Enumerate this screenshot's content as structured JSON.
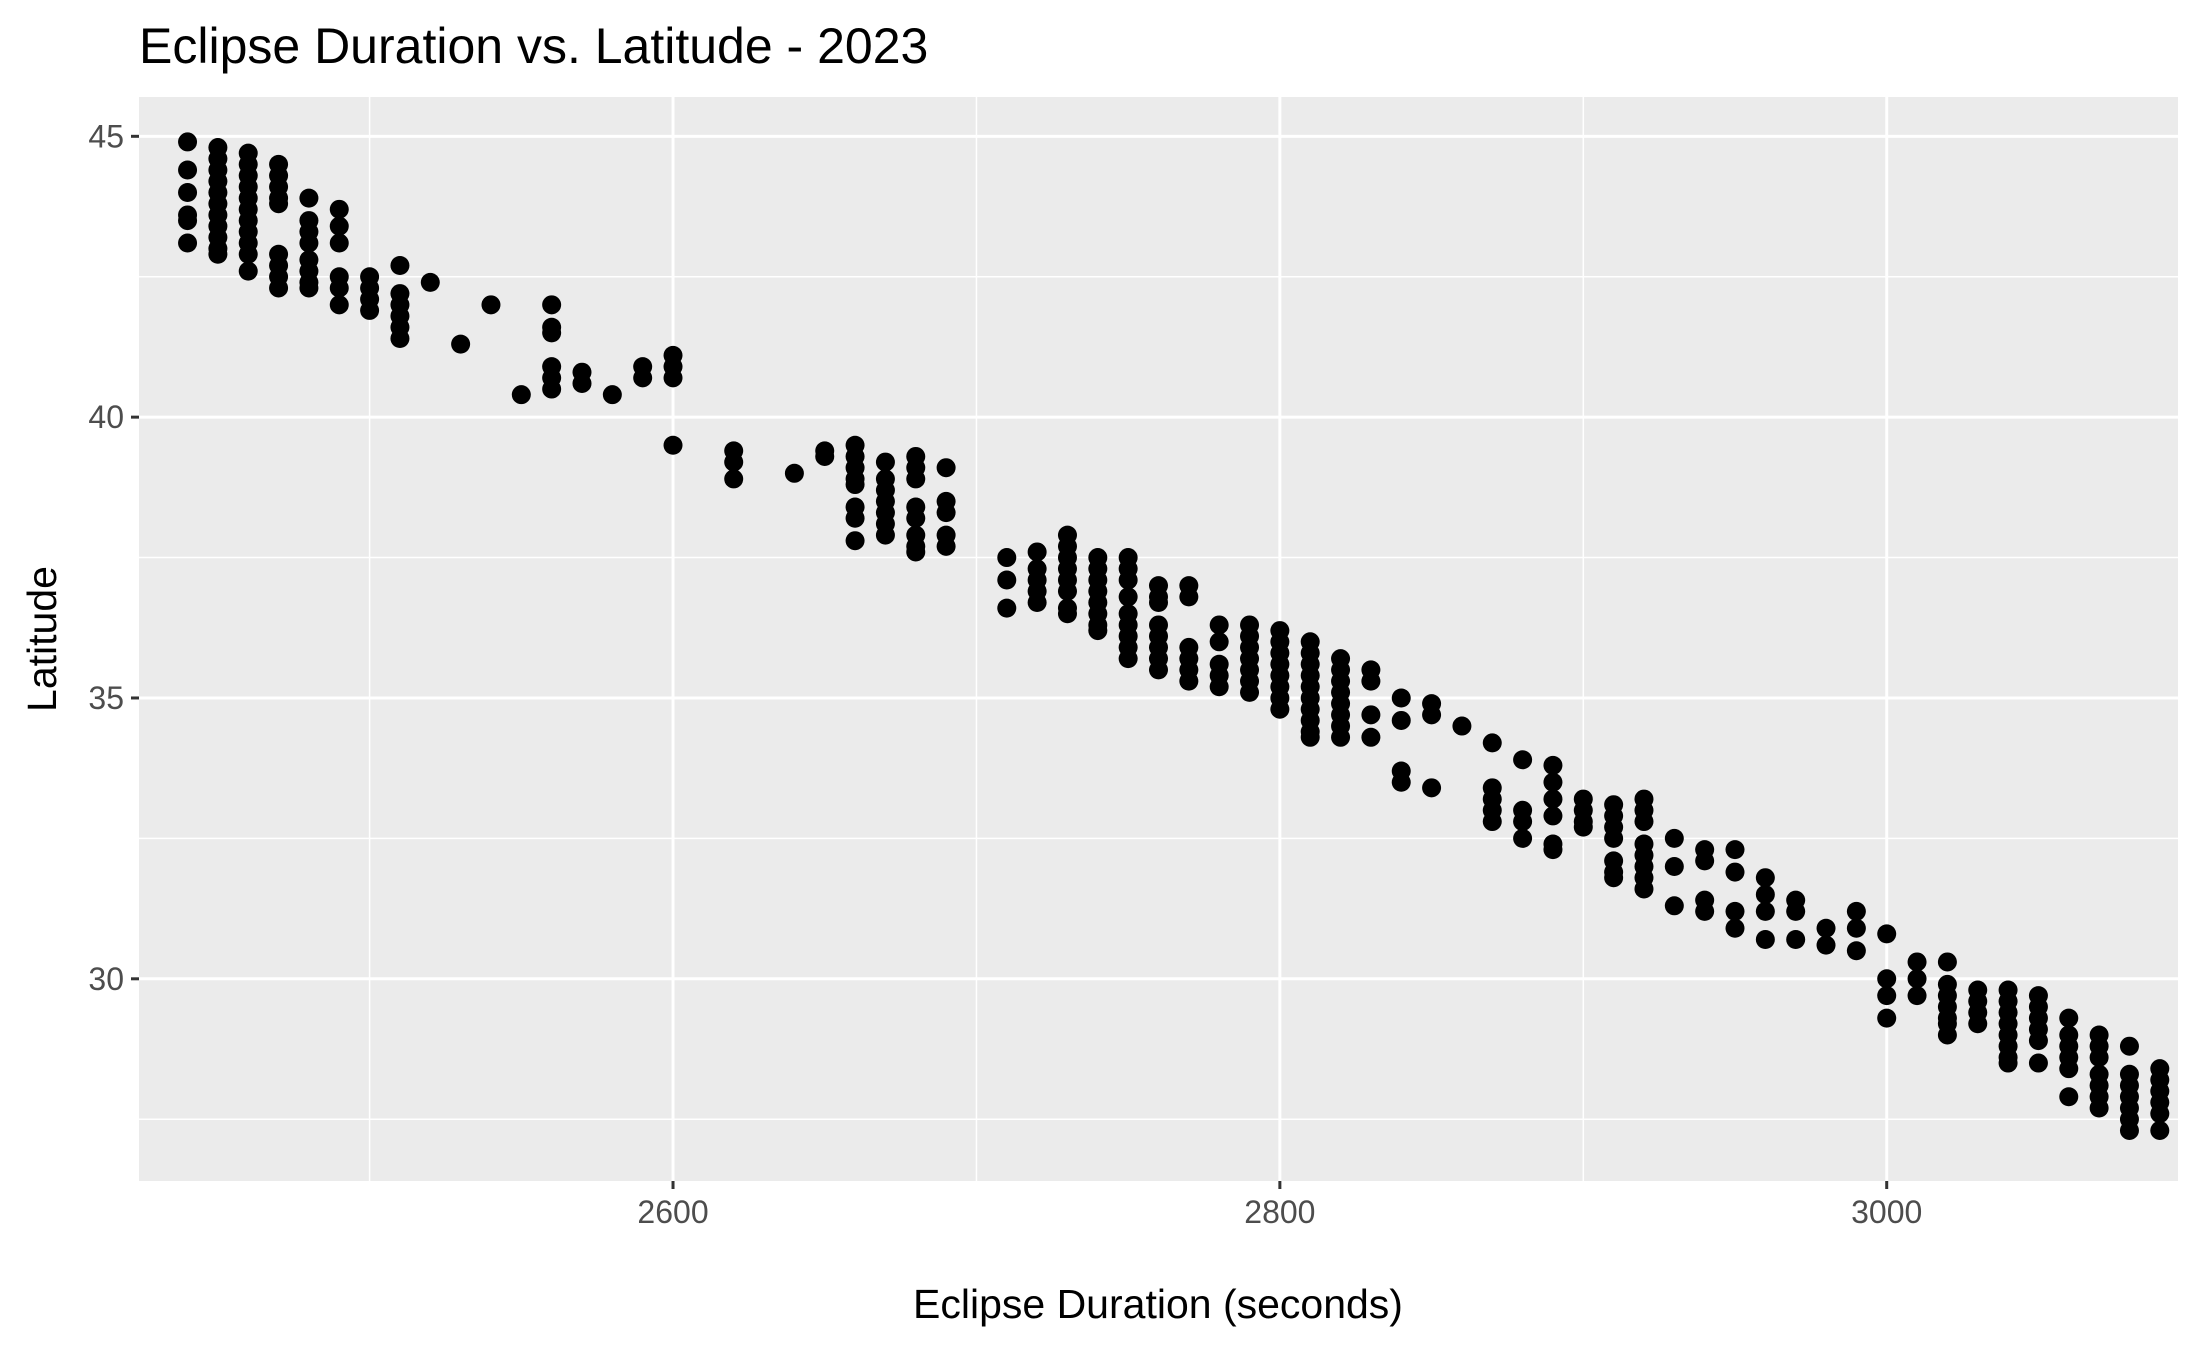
{
  "chart_data": {
    "type": "scatter",
    "title": "Eclipse Duration vs. Latitude - 2023",
    "xlabel": "Eclipse Duration (seconds)",
    "ylabel": "Latitude",
    "xlim": [
      2424,
      3096
    ],
    "ylim": [
      26.4,
      45.7
    ],
    "x_ticks": [
      2600,
      2800,
      3000
    ],
    "x_tick_labels": [
      "2600",
      "2800",
      "3000"
    ],
    "y_ticks": [
      30,
      35,
      40,
      45
    ],
    "y_tick_labels": [
      "30",
      "35",
      "40",
      "45"
    ],
    "grid": true,
    "legend": "none",
    "panel_color": "#ebebeb",
    "grid_color": "#ffffff",
    "point_color": "#000000",
    "points": [
      [
        2440,
        44.9
      ],
      [
        2440,
        44.4
      ],
      [
        2440,
        44.0
      ],
      [
        2440,
        43.6
      ],
      [
        2440,
        43.5
      ],
      [
        2440,
        43.1
      ],
      [
        2450,
        44.8
      ],
      [
        2450,
        44.6
      ],
      [
        2450,
        44.4
      ],
      [
        2450,
        44.2
      ],
      [
        2450,
        44.0
      ],
      [
        2450,
        43.8
      ],
      [
        2450,
        43.6
      ],
      [
        2450,
        43.4
      ],
      [
        2450,
        43.2
      ],
      [
        2450,
        43.0
      ],
      [
        2450,
        42.9
      ],
      [
        2460,
        44.7
      ],
      [
        2460,
        44.5
      ],
      [
        2460,
        44.3
      ],
      [
        2460,
        44.1
      ],
      [
        2460,
        43.9
      ],
      [
        2460,
        43.7
      ],
      [
        2460,
        43.5
      ],
      [
        2460,
        43.3
      ],
      [
        2460,
        43.1
      ],
      [
        2460,
        42.9
      ],
      [
        2460,
        42.6
      ],
      [
        2470,
        44.5
      ],
      [
        2470,
        44.3
      ],
      [
        2470,
        44.1
      ],
      [
        2470,
        43.9
      ],
      [
        2470,
        43.8
      ],
      [
        2470,
        42.9
      ],
      [
        2470,
        42.7
      ],
      [
        2470,
        42.5
      ],
      [
        2470,
        42.3
      ],
      [
        2480,
        43.9
      ],
      [
        2480,
        43.5
      ],
      [
        2480,
        43.3
      ],
      [
        2480,
        43.1
      ],
      [
        2480,
        42.8
      ],
      [
        2480,
        42.6
      ],
      [
        2480,
        42.4
      ],
      [
        2480,
        42.3
      ],
      [
        2490,
        43.7
      ],
      [
        2490,
        43.4
      ],
      [
        2490,
        43.1
      ],
      [
        2490,
        42.5
      ],
      [
        2490,
        42.3
      ],
      [
        2490,
        42.0
      ],
      [
        2500,
        42.5
      ],
      [
        2500,
        42.3
      ],
      [
        2500,
        42.1
      ],
      [
        2500,
        41.9
      ],
      [
        2510,
        42.7
      ],
      [
        2510,
        42.2
      ],
      [
        2510,
        42.0
      ],
      [
        2510,
        41.8
      ],
      [
        2510,
        41.6
      ],
      [
        2510,
        41.4
      ],
      [
        2520,
        42.4
      ],
      [
        2530,
        41.3
      ],
      [
        2540,
        42.0
      ],
      [
        2550,
        40.4
      ],
      [
        2560,
        42.0
      ],
      [
        2560,
        41.6
      ],
      [
        2560,
        41.5
      ],
      [
        2560,
        40.9
      ],
      [
        2560,
        40.7
      ],
      [
        2560,
        40.5
      ],
      [
        2570,
        40.8
      ],
      [
        2570,
        40.6
      ],
      [
        2580,
        40.4
      ],
      [
        2590,
        40.9
      ],
      [
        2590,
        40.7
      ],
      [
        2600,
        41.1
      ],
      [
        2600,
        40.9
      ],
      [
        2600,
        40.7
      ],
      [
        2600,
        39.5
      ],
      [
        2620,
        39.4
      ],
      [
        2620,
        39.2
      ],
      [
        2620,
        38.9
      ],
      [
        2640,
        39.0
      ],
      [
        2650,
        39.4
      ],
      [
        2650,
        39.3
      ],
      [
        2660,
        39.5
      ],
      [
        2660,
        39.3
      ],
      [
        2660,
        39.1
      ],
      [
        2660,
        38.9
      ],
      [
        2660,
        38.8
      ],
      [
        2660,
        38.4
      ],
      [
        2660,
        38.2
      ],
      [
        2660,
        37.8
      ],
      [
        2670,
        39.2
      ],
      [
        2670,
        38.9
      ],
      [
        2670,
        38.7
      ],
      [
        2670,
        38.5
      ],
      [
        2670,
        38.3
      ],
      [
        2670,
        38.1
      ],
      [
        2670,
        37.9
      ],
      [
        2680,
        39.3
      ],
      [
        2680,
        39.1
      ],
      [
        2680,
        38.9
      ],
      [
        2680,
        38.4
      ],
      [
        2680,
        38.2
      ],
      [
        2680,
        37.9
      ],
      [
        2680,
        37.7
      ],
      [
        2680,
        37.6
      ],
      [
        2690,
        39.1
      ],
      [
        2690,
        38.5
      ],
      [
        2690,
        38.3
      ],
      [
        2690,
        37.9
      ],
      [
        2690,
        37.7
      ],
      [
        2710,
        37.5
      ],
      [
        2710,
        37.1
      ],
      [
        2710,
        36.6
      ],
      [
        2720,
        37.6
      ],
      [
        2720,
        37.3
      ],
      [
        2720,
        37.1
      ],
      [
        2720,
        36.9
      ],
      [
        2720,
        36.7
      ],
      [
        2730,
        37.9
      ],
      [
        2730,
        37.7
      ],
      [
        2730,
        37.5
      ],
      [
        2730,
        37.3
      ],
      [
        2730,
        37.1
      ],
      [
        2730,
        36.9
      ],
      [
        2730,
        36.6
      ],
      [
        2730,
        36.5
      ],
      [
        2740,
        37.5
      ],
      [
        2740,
        37.3
      ],
      [
        2740,
        37.1
      ],
      [
        2740,
        36.9
      ],
      [
        2740,
        36.7
      ],
      [
        2740,
        36.5
      ],
      [
        2740,
        36.3
      ],
      [
        2740,
        36.2
      ],
      [
        2750,
        37.5
      ],
      [
        2750,
        37.3
      ],
      [
        2750,
        37.1
      ],
      [
        2750,
        36.8
      ],
      [
        2750,
        36.5
      ],
      [
        2750,
        36.3
      ],
      [
        2750,
        36.1
      ],
      [
        2750,
        35.9
      ],
      [
        2750,
        35.7
      ],
      [
        2760,
        37.0
      ],
      [
        2760,
        36.8
      ],
      [
        2760,
        36.7
      ],
      [
        2760,
        36.3
      ],
      [
        2760,
        36.1
      ],
      [
        2760,
        35.9
      ],
      [
        2760,
        35.7
      ],
      [
        2760,
        35.5
      ],
      [
        2770,
        37.0
      ],
      [
        2770,
        36.8
      ],
      [
        2770,
        35.9
      ],
      [
        2770,
        35.7
      ],
      [
        2770,
        35.5
      ],
      [
        2770,
        35.3
      ],
      [
        2780,
        36.3
      ],
      [
        2780,
        36.0
      ],
      [
        2780,
        35.6
      ],
      [
        2780,
        35.4
      ],
      [
        2780,
        35.2
      ],
      [
        2790,
        36.3
      ],
      [
        2790,
        36.1
      ],
      [
        2790,
        35.9
      ],
      [
        2790,
        35.7
      ],
      [
        2790,
        35.5
      ],
      [
        2790,
        35.3
      ],
      [
        2790,
        35.1
      ],
      [
        2800,
        36.2
      ],
      [
        2800,
        36.0
      ],
      [
        2800,
        35.8
      ],
      [
        2800,
        35.6
      ],
      [
        2800,
        35.4
      ],
      [
        2800,
        35.2
      ],
      [
        2800,
        35.0
      ],
      [
        2800,
        34.8
      ],
      [
        2810,
        36.0
      ],
      [
        2810,
        35.8
      ],
      [
        2810,
        35.6
      ],
      [
        2810,
        35.4
      ],
      [
        2810,
        35.2
      ],
      [
        2810,
        35.0
      ],
      [
        2810,
        34.8
      ],
      [
        2810,
        34.6
      ],
      [
        2810,
        34.4
      ],
      [
        2810,
        34.3
      ],
      [
        2820,
        35.7
      ],
      [
        2820,
        35.5
      ],
      [
        2820,
        35.3
      ],
      [
        2820,
        35.1
      ],
      [
        2820,
        34.9
      ],
      [
        2820,
        34.7
      ],
      [
        2820,
        34.5
      ],
      [
        2820,
        34.3
      ],
      [
        2830,
        35.5
      ],
      [
        2830,
        35.3
      ],
      [
        2830,
        34.7
      ],
      [
        2830,
        34.3
      ],
      [
        2840,
        35.0
      ],
      [
        2840,
        34.6
      ],
      [
        2840,
        33.7
      ],
      [
        2840,
        33.5
      ],
      [
        2850,
        34.9
      ],
      [
        2850,
        34.7
      ],
      [
        2850,
        33.4
      ],
      [
        2860,
        34.5
      ],
      [
        2870,
        34.2
      ],
      [
        2870,
        33.4
      ],
      [
        2870,
        33.2
      ],
      [
        2870,
        33.0
      ],
      [
        2870,
        32.8
      ],
      [
        2880,
        33.9
      ],
      [
        2880,
        33.0
      ],
      [
        2880,
        32.8
      ],
      [
        2880,
        32.5
      ],
      [
        2890,
        33.8
      ],
      [
        2890,
        33.5
      ],
      [
        2890,
        33.2
      ],
      [
        2890,
        32.9
      ],
      [
        2890,
        32.4
      ],
      [
        2890,
        32.3
      ],
      [
        2900,
        33.2
      ],
      [
        2900,
        33.0
      ],
      [
        2900,
        32.8
      ],
      [
        2900,
        32.7
      ],
      [
        2910,
        33.1
      ],
      [
        2910,
        32.9
      ],
      [
        2910,
        32.7
      ],
      [
        2910,
        32.5
      ],
      [
        2910,
        32.1
      ],
      [
        2910,
        31.9
      ],
      [
        2910,
        31.8
      ],
      [
        2920,
        33.2
      ],
      [
        2920,
        33.0
      ],
      [
        2920,
        32.8
      ],
      [
        2920,
        32.4
      ],
      [
        2920,
        32.2
      ],
      [
        2920,
        32.0
      ],
      [
        2920,
        31.8
      ],
      [
        2920,
        31.6
      ],
      [
        2930,
        32.5
      ],
      [
        2930,
        32.0
      ],
      [
        2930,
        31.3
      ],
      [
        2940,
        32.3
      ],
      [
        2940,
        32.1
      ],
      [
        2940,
        31.4
      ],
      [
        2940,
        31.2
      ],
      [
        2950,
        32.3
      ],
      [
        2950,
        31.9
      ],
      [
        2950,
        31.2
      ],
      [
        2950,
        30.9
      ],
      [
        2960,
        31.8
      ],
      [
        2960,
        31.5
      ],
      [
        2960,
        31.2
      ],
      [
        2960,
        30.7
      ],
      [
        2970,
        31.4
      ],
      [
        2970,
        31.2
      ],
      [
        2970,
        30.7
      ],
      [
        2980,
        30.9
      ],
      [
        2980,
        30.6
      ],
      [
        2990,
        31.2
      ],
      [
        2990,
        30.9
      ],
      [
        2990,
        30.5
      ],
      [
        3000,
        30.8
      ],
      [
        3000,
        30.0
      ],
      [
        3000,
        29.7
      ],
      [
        3000,
        29.3
      ],
      [
        3010,
        30.3
      ],
      [
        3010,
        30.0
      ],
      [
        3010,
        29.7
      ],
      [
        3020,
        30.3
      ],
      [
        3020,
        29.9
      ],
      [
        3020,
        29.7
      ],
      [
        3020,
        29.5
      ],
      [
        3020,
        29.3
      ],
      [
        3020,
        29.2
      ],
      [
        3020,
        29.0
      ],
      [
        3030,
        29.8
      ],
      [
        3030,
        29.6
      ],
      [
        3030,
        29.4
      ],
      [
        3030,
        29.2
      ],
      [
        3040,
        29.8
      ],
      [
        3040,
        29.6
      ],
      [
        3040,
        29.4
      ],
      [
        3040,
        29.2
      ],
      [
        3040,
        29.0
      ],
      [
        3040,
        28.8
      ],
      [
        3040,
        28.6
      ],
      [
        3040,
        28.5
      ],
      [
        3050,
        29.7
      ],
      [
        3050,
        29.5
      ],
      [
        3050,
        29.3
      ],
      [
        3050,
        29.1
      ],
      [
        3050,
        28.9
      ],
      [
        3050,
        28.5
      ],
      [
        3060,
        29.3
      ],
      [
        3060,
        29.0
      ],
      [
        3060,
        28.8
      ],
      [
        3060,
        28.6
      ],
      [
        3060,
        28.4
      ],
      [
        3060,
        27.9
      ],
      [
        3070,
        29.0
      ],
      [
        3070,
        28.8
      ],
      [
        3070,
        28.6
      ],
      [
        3070,
        28.3
      ],
      [
        3070,
        28.1
      ],
      [
        3070,
        27.9
      ],
      [
        3070,
        27.7
      ],
      [
        3080,
        28.8
      ],
      [
        3080,
        28.3
      ],
      [
        3080,
        28.1
      ],
      [
        3080,
        27.9
      ],
      [
        3080,
        27.7
      ],
      [
        3080,
        27.5
      ],
      [
        3080,
        27.3
      ],
      [
        3090,
        28.4
      ],
      [
        3090,
        28.2
      ],
      [
        3090,
        28.0
      ],
      [
        3090,
        27.8
      ],
      [
        3090,
        27.6
      ],
      [
        3090,
        27.3
      ]
    ]
  }
}
